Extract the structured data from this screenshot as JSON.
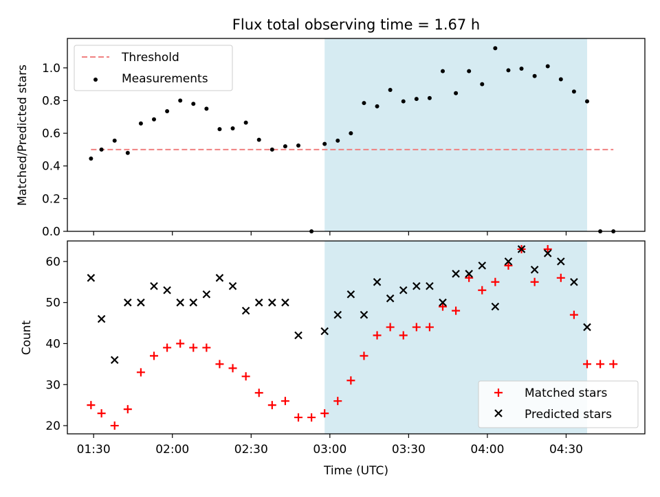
{
  "title": "Flux total observing time = 1.67 h",
  "xlabel": "Time (UTC)",
  "colors": {
    "threshold": "#f08080",
    "shade": "#add8e6",
    "matched": "#ff0000",
    "predicted": "#000000",
    "measure": "#000000"
  },
  "chart_data": [
    {
      "type": "scatter",
      "ylabel": "Matched/Predicted stars",
      "ylim": [
        0,
        1.18
      ],
      "yticks": [
        0.0,
        0.2,
        0.4,
        0.6,
        0.8,
        1.0
      ],
      "ytick_labels": [
        "0.0",
        "0.2",
        "0.4",
        "0.6",
        "0.8",
        "1.0"
      ],
      "xlim": [
        "01:20",
        "05:00"
      ],
      "shaded_span": [
        "02:58",
        "04:38"
      ],
      "legend": {
        "position": "top-left",
        "entries": [
          "Threshold",
          "Measurements"
        ]
      },
      "threshold": {
        "name": "Threshold",
        "x": [
          "01:29",
          "04:48"
        ],
        "value": 0.5
      },
      "series": [
        {
          "name": "Measurements",
          "x": [
            "01:29",
            "01:33",
            "01:38",
            "01:43",
            "01:48",
            "01:53",
            "01:58",
            "02:03",
            "02:08",
            "02:13",
            "02:18",
            "02:23",
            "02:28",
            "02:33",
            "02:38",
            "02:43",
            "02:48",
            "02:53",
            "02:58",
            "03:03",
            "03:08",
            "03:13",
            "03:18",
            "03:23",
            "03:28",
            "03:33",
            "03:38",
            "03:43",
            "03:48",
            "03:53",
            "03:58",
            "04:03",
            "04:08",
            "04:13",
            "04:18",
            "04:23",
            "04:28",
            "04:33",
            "04:38",
            "04:43",
            "04:48"
          ],
          "values": [
            0.445,
            0.5,
            0.555,
            0.48,
            0.66,
            0.685,
            0.735,
            0.8,
            0.78,
            0.75,
            0.625,
            0.63,
            0.665,
            0.56,
            0.5,
            0.52,
            0.525,
            0.0,
            0.535,
            0.555,
            0.6,
            0.785,
            0.765,
            0.865,
            0.795,
            0.81,
            0.815,
            0.98,
            0.845,
            0.98,
            0.9,
            1.12,
            0.985,
            0.995,
            0.95,
            1.01,
            0.93,
            0.855,
            0.795,
            0.0,
            0.0
          ]
        }
      ]
    },
    {
      "type": "scatter",
      "ylabel": "Count",
      "ylim": [
        18,
        65
      ],
      "yticks": [
        20,
        30,
        40,
        50,
        60
      ],
      "ytick_labels": [
        "20",
        "30",
        "40",
        "50",
        "60"
      ],
      "xlim": [
        "01:20",
        "05:00"
      ],
      "xticks": [
        "01:30",
        "02:00",
        "02:30",
        "03:00",
        "03:30",
        "04:00",
        "04:30"
      ],
      "xtick_labels": [
        "01:30",
        "02:00",
        "02:30",
        "03:00",
        "03:30",
        "04:00",
        "04:30"
      ],
      "shaded_span": [
        "02:58",
        "04:38"
      ],
      "legend": {
        "position": "bottom-right",
        "entries": [
          "Matched stars",
          "Predicted stars"
        ]
      },
      "series": [
        {
          "name": "Matched stars",
          "marker": "+",
          "x": [
            "01:29",
            "01:33",
            "01:38",
            "01:43",
            "01:48",
            "01:53",
            "01:58",
            "02:03",
            "02:08",
            "02:13",
            "02:18",
            "02:23",
            "02:28",
            "02:33",
            "02:38",
            "02:43",
            "02:48",
            "02:53",
            "02:58",
            "03:03",
            "03:08",
            "03:13",
            "03:18",
            "03:23",
            "03:28",
            "03:33",
            "03:38",
            "03:43",
            "03:48",
            "03:53",
            "03:58",
            "04:03",
            "04:08",
            "04:13",
            "04:18",
            "04:23",
            "04:28",
            "04:33",
            "04:38",
            "04:43",
            "04:48"
          ],
          "values": [
            25,
            23,
            20,
            24,
            33,
            37,
            39,
            40,
            39,
            39,
            35,
            34,
            32,
            28,
            25,
            26,
            22,
            22,
            23,
            26,
            31,
            37,
            42,
            44,
            42,
            44,
            44,
            49,
            48,
            56,
            53,
            55,
            59,
            63,
            55,
            63,
            56,
            47,
            35,
            35,
            35
          ]
        },
        {
          "name": "Predicted stars",
          "marker": "x",
          "x": [
            "01:29",
            "01:33",
            "01:38",
            "01:43",
            "01:48",
            "01:53",
            "01:58",
            "02:03",
            "02:08",
            "02:13",
            "02:18",
            "02:23",
            "02:28",
            "02:33",
            "02:38",
            "02:43",
            "02:48",
            "02:58",
            "03:03",
            "03:08",
            "03:13",
            "03:18",
            "03:23",
            "03:28",
            "03:33",
            "03:38",
            "03:43",
            "03:48",
            "03:53",
            "03:58",
            "04:03",
            "04:08",
            "04:13",
            "04:18",
            "04:23",
            "04:28",
            "04:33",
            "04:38"
          ],
          "values": [
            56,
            46,
            36,
            50,
            50,
            54,
            53,
            50,
            50,
            52,
            56,
            54,
            48,
            50,
            50,
            50,
            42,
            43,
            47,
            52,
            47,
            55,
            51,
            53,
            54,
            54,
            50,
            57,
            57,
            59,
            49,
            60,
            63,
            58,
            62,
            60,
            55,
            44
          ]
        }
      ]
    }
  ]
}
